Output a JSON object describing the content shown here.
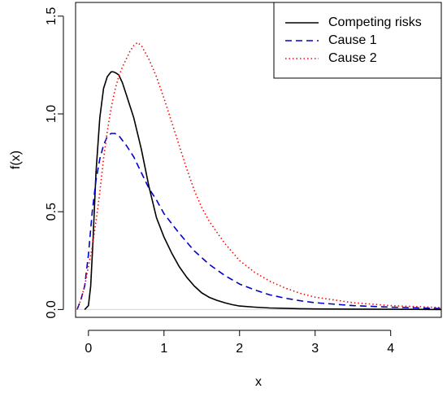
{
  "chart_data": {
    "type": "line",
    "xlabel": "x",
    "ylabel": "f(x)",
    "xlim": [
      -0.17,
      4.67
    ],
    "ylim": [
      -0.04,
      1.57
    ],
    "x_ticks": [
      0,
      1,
      2,
      3,
      4
    ],
    "x_tick_labels": [
      "0",
      "1",
      "2",
      "3",
      "4"
    ],
    "y_ticks": [
      0.0,
      0.5,
      1.0,
      1.5
    ],
    "y_tick_labels": [
      "0.0",
      "0.5",
      "1.0",
      "1.5"
    ],
    "grid": false,
    "reference_line_y": 0,
    "reference_line_color": "#d3d3d3",
    "legend_position": "top-right",
    "series": [
      {
        "name": "Competing risks",
        "color": "#000000",
        "line_style": "solid",
        "x": [
          -0.05,
          0.0,
          0.03,
          0.06,
          0.1,
          0.15,
          0.2,
          0.25,
          0.3,
          0.33,
          0.36,
          0.4,
          0.45,
          0.5,
          0.6,
          0.7,
          0.8,
          0.9,
          1.0,
          1.1,
          1.2,
          1.3,
          1.4,
          1.5,
          1.6,
          1.7,
          1.8,
          1.9,
          2.0,
          2.2,
          2.4,
          2.6,
          2.8,
          3.0,
          3.5,
          4.0,
          4.67
        ],
        "y": [
          0.0,
          0.02,
          0.12,
          0.35,
          0.7,
          0.98,
          1.13,
          1.19,
          1.215,
          1.215,
          1.21,
          1.2,
          1.16,
          1.1,
          0.98,
          0.82,
          0.63,
          0.47,
          0.37,
          0.29,
          0.22,
          0.165,
          0.12,
          0.085,
          0.062,
          0.047,
          0.035,
          0.025,
          0.018,
          0.012,
          0.008,
          0.006,
          0.004,
          0.003,
          0.002,
          0.001,
          0.0
        ]
      },
      {
        "name": "Cause 1",
        "color": "#0000cc",
        "line_style": "dashed",
        "x": [
          -0.15,
          -0.1,
          -0.05,
          0.0,
          0.05,
          0.1,
          0.15,
          0.2,
          0.25,
          0.3,
          0.35,
          0.4,
          0.5,
          0.6,
          0.7,
          0.8,
          0.9,
          1.0,
          1.2,
          1.4,
          1.6,
          1.8,
          2.0,
          2.2,
          2.4,
          2.6,
          2.8,
          3.0,
          3.5,
          4.0,
          4.67
        ],
        "y": [
          0.0,
          0.05,
          0.12,
          0.28,
          0.5,
          0.66,
          0.77,
          0.84,
          0.885,
          0.9,
          0.9,
          0.89,
          0.84,
          0.78,
          0.7,
          0.62,
          0.56,
          0.49,
          0.39,
          0.3,
          0.23,
          0.175,
          0.13,
          0.1,
          0.075,
          0.058,
          0.045,
          0.035,
          0.02,
          0.012,
          0.005
        ]
      },
      {
        "name": "Cause 2",
        "color": "#ff0000",
        "line_style": "dotted",
        "x": [
          -0.15,
          -0.1,
          -0.05,
          0.0,
          0.05,
          0.1,
          0.15,
          0.2,
          0.25,
          0.3,
          0.35,
          0.4,
          0.45,
          0.5,
          0.55,
          0.6,
          0.65,
          0.7,
          0.8,
          0.9,
          1.0,
          1.1,
          1.2,
          1.3,
          1.4,
          1.5,
          1.6,
          1.8,
          2.0,
          2.2,
          2.4,
          2.6,
          2.8,
          3.0,
          3.5,
          4.0,
          4.67
        ],
        "y": [
          0.0,
          0.05,
          0.12,
          0.22,
          0.32,
          0.45,
          0.6,
          0.77,
          0.91,
          1.03,
          1.12,
          1.19,
          1.24,
          1.28,
          1.32,
          1.35,
          1.365,
          1.35,
          1.28,
          1.19,
          1.08,
          0.96,
          0.84,
          0.72,
          0.61,
          0.52,
          0.45,
          0.34,
          0.25,
          0.19,
          0.145,
          0.11,
          0.083,
          0.063,
          0.035,
          0.02,
          0.01
        ]
      }
    ]
  }
}
